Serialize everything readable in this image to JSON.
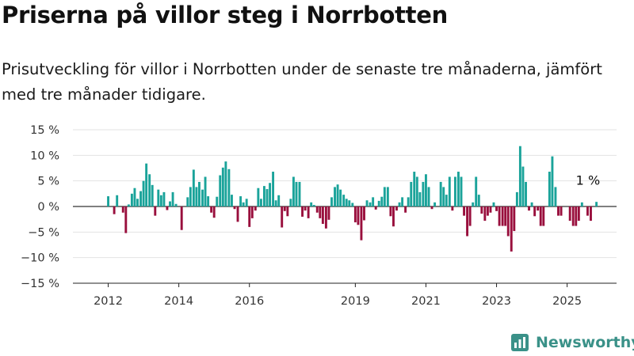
{
  "header": {
    "title": "Priserna på villor steg i Norrbotten",
    "subtitle": "Prisutveckling för villor i Norrbotten under de senaste tre månaderna, jämfört med tre månader tidigare."
  },
  "brand": {
    "name": "Newsworthy",
    "logo_icon": "bar-chart-icon",
    "color": "#3a9188"
  },
  "chart_data": {
    "type": "bar",
    "y_ticks": [
      "15 %",
      "10 %",
      "5 %",
      "0 %",
      "−5 %",
      "−10 %",
      "−15 %"
    ],
    "y_tick_values": [
      15,
      10,
      5,
      0,
      -5,
      -10,
      -15
    ],
    "ylim": [
      -15,
      15
    ],
    "x_ticks": [
      {
        "label": "2012",
        "value": 2012.0
      },
      {
        "label": "2014",
        "value": 2014.0
      },
      {
        "label": "2016",
        "value": 2016.0
      },
      {
        "label": "2019",
        "value": 2019.0
      },
      {
        "label": "2021",
        "value": 2021.0
      },
      {
        "label": "2023",
        "value": 2023.0
      },
      {
        "label": "2025",
        "value": 2025.0
      }
    ],
    "xlim": [
      2011.0,
      2026.4
    ],
    "grid": true,
    "colors": {
      "positive": "#1aa39a",
      "negative": "#990f3d",
      "grid": "#e3e3e3",
      "zero_line": "#333333"
    },
    "annotation": {
      "label": "1 %",
      "x": 2025.5,
      "y": 1
    },
    "series": [
      {
        "values": [
          {
            "x": 2012.0,
            "y": 2
          },
          {
            "x": 2012.17,
            "y": -1.5
          },
          {
            "x": 2012.25,
            "y": 2.2
          },
          {
            "x": 2012.42,
            "y": -1.2
          },
          {
            "x": 2012.5,
            "y": -5.2
          },
          {
            "x": 2012.58,
            "y": 0.4
          },
          {
            "x": 2012.67,
            "y": 2.5
          },
          {
            "x": 2012.75,
            "y": 3.6
          },
          {
            "x": 2012.83,
            "y": 1.5
          },
          {
            "x": 2012.92,
            "y": 3
          },
          {
            "x": 2013.0,
            "y": 5
          },
          {
            "x": 2013.08,
            "y": 8.4
          },
          {
            "x": 2013.17,
            "y": 6.3
          },
          {
            "x": 2013.25,
            "y": 4.2
          },
          {
            "x": 2013.33,
            "y": -1.8
          },
          {
            "x": 2013.42,
            "y": 3.3
          },
          {
            "x": 2013.5,
            "y": 2.2
          },
          {
            "x": 2013.58,
            "y": 2.8
          },
          {
            "x": 2013.67,
            "y": -0.7
          },
          {
            "x": 2013.75,
            "y": 1
          },
          {
            "x": 2013.83,
            "y": 2.8
          },
          {
            "x": 2013.92,
            "y": 0.5
          },
          {
            "x": 2014.08,
            "y": -4.6
          },
          {
            "x": 2014.25,
            "y": 1.8
          },
          {
            "x": 2014.33,
            "y": 3.8
          },
          {
            "x": 2014.42,
            "y": 7.2
          },
          {
            "x": 2014.5,
            "y": 3.8
          },
          {
            "x": 2014.58,
            "y": 4.8
          },
          {
            "x": 2014.67,
            "y": 3.3
          },
          {
            "x": 2014.75,
            "y": 5.8
          },
          {
            "x": 2014.83,
            "y": 2
          },
          {
            "x": 2014.92,
            "y": -1.2
          },
          {
            "x": 2015.0,
            "y": -2.2
          },
          {
            "x": 2015.08,
            "y": 1.9
          },
          {
            "x": 2015.17,
            "y": 6.1
          },
          {
            "x": 2015.25,
            "y": 7.6
          },
          {
            "x": 2015.33,
            "y": 8.8
          },
          {
            "x": 2015.42,
            "y": 7.3
          },
          {
            "x": 2015.5,
            "y": 2.3
          },
          {
            "x": 2015.58,
            "y": -0.5
          },
          {
            "x": 2015.67,
            "y": -3
          },
          {
            "x": 2015.75,
            "y": 2
          },
          {
            "x": 2015.83,
            "y": 0.8
          },
          {
            "x": 2015.92,
            "y": 1.5
          },
          {
            "x": 2016.0,
            "y": -4
          },
          {
            "x": 2016.08,
            "y": -2.3
          },
          {
            "x": 2016.17,
            "y": -0.8
          },
          {
            "x": 2016.25,
            "y": 3.6
          },
          {
            "x": 2016.33,
            "y": 1.5
          },
          {
            "x": 2016.42,
            "y": 4
          },
          {
            "x": 2016.5,
            "y": 3.4
          },
          {
            "x": 2016.58,
            "y": 4.6
          },
          {
            "x": 2016.67,
            "y": 6.8
          },
          {
            "x": 2016.75,
            "y": 1.2
          },
          {
            "x": 2016.83,
            "y": 2.2
          },
          {
            "x": 2016.92,
            "y": -4.1
          },
          {
            "x": 2017.0,
            "y": -0.9
          },
          {
            "x": 2017.08,
            "y": -1.9
          },
          {
            "x": 2017.17,
            "y": 1.5
          },
          {
            "x": 2017.25,
            "y": 5.8
          },
          {
            "x": 2017.33,
            "y": 4.8
          },
          {
            "x": 2017.42,
            "y": 4.8
          },
          {
            "x": 2017.5,
            "y": -2
          },
          {
            "x": 2017.58,
            "y": -0.8
          },
          {
            "x": 2017.67,
            "y": -2.3
          },
          {
            "x": 2017.75,
            "y": 0.8
          },
          {
            "x": 2017.83,
            "y": 0.3
          },
          {
            "x": 2017.92,
            "y": -1.2
          },
          {
            "x": 2018.0,
            "y": -2.3
          },
          {
            "x": 2018.08,
            "y": -3.4
          },
          {
            "x": 2018.17,
            "y": -4.3
          },
          {
            "x": 2018.25,
            "y": -2.6
          },
          {
            "x": 2018.33,
            "y": 1.8
          },
          {
            "x": 2018.42,
            "y": 3.8
          },
          {
            "x": 2018.5,
            "y": 4.3
          },
          {
            "x": 2018.58,
            "y": 3.3
          },
          {
            "x": 2018.67,
            "y": 2.3
          },
          {
            "x": 2018.75,
            "y": 1.5
          },
          {
            "x": 2018.83,
            "y": 1.2
          },
          {
            "x": 2018.92,
            "y": 0.7
          },
          {
            "x": 2019.0,
            "y": -3.1
          },
          {
            "x": 2019.08,
            "y": -3.6
          },
          {
            "x": 2019.17,
            "y": -6.6
          },
          {
            "x": 2019.25,
            "y": -2.7
          },
          {
            "x": 2019.33,
            "y": 1.2
          },
          {
            "x": 2019.42,
            "y": 0.8
          },
          {
            "x": 2019.5,
            "y": 1.8
          },
          {
            "x": 2019.58,
            "y": -0.6
          },
          {
            "x": 2019.67,
            "y": 1.1
          },
          {
            "x": 2019.75,
            "y": 1.9
          },
          {
            "x": 2019.83,
            "y": 3.8
          },
          {
            "x": 2019.92,
            "y": 3.8
          },
          {
            "x": 2020.0,
            "y": -1.9
          },
          {
            "x": 2020.08,
            "y": -3.9
          },
          {
            "x": 2020.17,
            "y": -0.8
          },
          {
            "x": 2020.25,
            "y": 0.8
          },
          {
            "x": 2020.33,
            "y": 1.8
          },
          {
            "x": 2020.42,
            "y": -1.2
          },
          {
            "x": 2020.5,
            "y": 1.8
          },
          {
            "x": 2020.58,
            "y": 4.8
          },
          {
            "x": 2020.67,
            "y": 6.8
          },
          {
            "x": 2020.75,
            "y": 5.8
          },
          {
            "x": 2020.83,
            "y": 2.8
          },
          {
            "x": 2020.92,
            "y": 4.8
          },
          {
            "x": 2021.0,
            "y": 6.3
          },
          {
            "x": 2021.08,
            "y": 3.8
          },
          {
            "x": 2021.17,
            "y": -0.5
          },
          {
            "x": 2021.25,
            "y": 0.8
          },
          {
            "x": 2021.42,
            "y": 4.8
          },
          {
            "x": 2021.5,
            "y": 3.8
          },
          {
            "x": 2021.58,
            "y": 2.3
          },
          {
            "x": 2021.67,
            "y": 5.8
          },
          {
            "x": 2021.75,
            "y": -0.8
          },
          {
            "x": 2021.83,
            "y": 5.8
          },
          {
            "x": 2021.92,
            "y": 6.8
          },
          {
            "x": 2022.0,
            "y": 5.8
          },
          {
            "x": 2022.08,
            "y": -1.8
          },
          {
            "x": 2022.17,
            "y": -5.8
          },
          {
            "x": 2022.25,
            "y": -3.8
          },
          {
            "x": 2022.33,
            "y": 0.8
          },
          {
            "x": 2022.42,
            "y": 5.8
          },
          {
            "x": 2022.5,
            "y": 2.3
          },
          {
            "x": 2022.58,
            "y": -1.4
          },
          {
            "x": 2022.67,
            "y": -2.8
          },
          {
            "x": 2022.75,
            "y": -1.8
          },
          {
            "x": 2022.83,
            "y": -1.2
          },
          {
            "x": 2022.92,
            "y": 0.8
          },
          {
            "x": 2023.0,
            "y": -0.9
          },
          {
            "x": 2023.08,
            "y": -3.8
          },
          {
            "x": 2023.17,
            "y": -3.8
          },
          {
            "x": 2023.25,
            "y": -3.8
          },
          {
            "x": 2023.33,
            "y": -5.8
          },
          {
            "x": 2023.42,
            "y": -8.8
          },
          {
            "x": 2023.5,
            "y": -4.8
          },
          {
            "x": 2023.58,
            "y": 2.8
          },
          {
            "x": 2023.67,
            "y": 11.8
          },
          {
            "x": 2023.75,
            "y": 7.8
          },
          {
            "x": 2023.83,
            "y": 4.8
          },
          {
            "x": 2023.92,
            "y": -0.8
          },
          {
            "x": 2024.0,
            "y": 0.8
          },
          {
            "x": 2024.08,
            "y": -1.9
          },
          {
            "x": 2024.17,
            "y": -0.8
          },
          {
            "x": 2024.25,
            "y": -3.8
          },
          {
            "x": 2024.33,
            "y": -3.8
          },
          {
            "x": 2024.5,
            "y": 6.8
          },
          {
            "x": 2024.58,
            "y": 9.8
          },
          {
            "x": 2024.67,
            "y": 3.8
          },
          {
            "x": 2024.75,
            "y": -1.8
          },
          {
            "x": 2024.83,
            "y": -1.8
          },
          {
            "x": 2025.08,
            "y": -2.8
          },
          {
            "x": 2025.17,
            "y": -3.8
          },
          {
            "x": 2025.25,
            "y": -3.8
          },
          {
            "x": 2025.33,
            "y": -2.8
          },
          {
            "x": 2025.42,
            "y": 0.8
          },
          {
            "x": 2025.58,
            "y": -1.8
          },
          {
            "x": 2025.67,
            "y": -2.8
          },
          {
            "x": 2025.83,
            "y": 0.9
          }
        ]
      }
    ]
  }
}
